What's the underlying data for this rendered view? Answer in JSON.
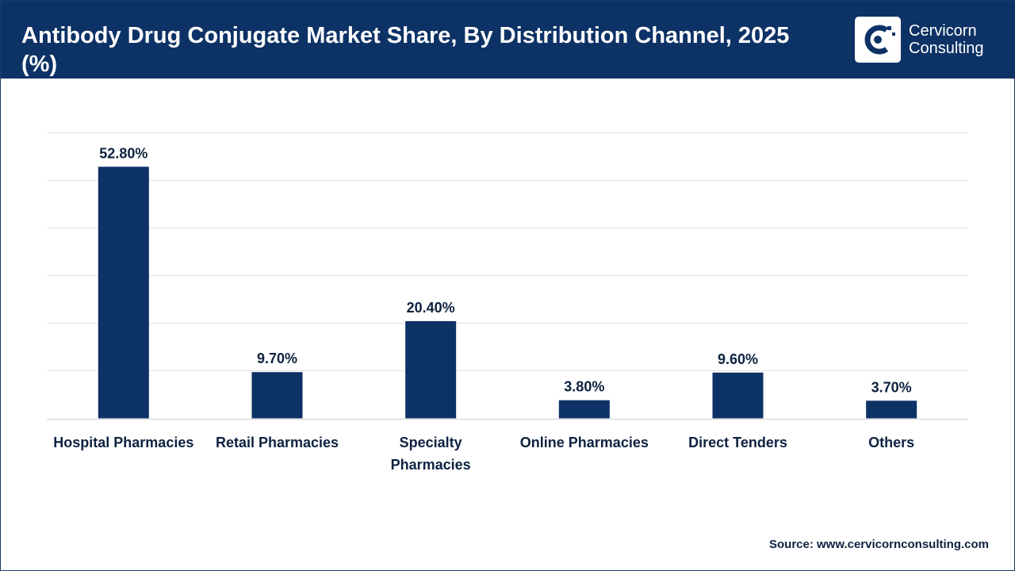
{
  "header": {
    "title": "Antibody Drug Conjugate Market Share, By Distribution Channel, 2025 (%)",
    "logo_line1": "Cervicorn",
    "logo_line2": "Consulting"
  },
  "source": "Source: www.cervicornconsulting.com",
  "colors": {
    "header_bg": "#0d3266",
    "bar": "#0d3266",
    "label": "#0d2240",
    "grid": "#e3e3e3"
  },
  "chart_data": {
    "type": "bar",
    "categories": [
      [
        "Hospital Pharmacies"
      ],
      [
        "Retail Pharmacies"
      ],
      [
        "Specialty",
        "Pharmacies"
      ],
      [
        "Online Pharmacies"
      ],
      [
        "Direct Tenders"
      ],
      [
        "Others"
      ]
    ],
    "values": [
      52.8,
      9.7,
      20.4,
      3.8,
      9.6,
      3.7
    ],
    "data_labels": [
      "52.80%",
      "9.70%",
      "20.40%",
      "3.80%",
      "9.60%",
      "3.70%"
    ],
    "ylim": [
      0,
      60
    ],
    "grid": true,
    "legend": "none"
  }
}
